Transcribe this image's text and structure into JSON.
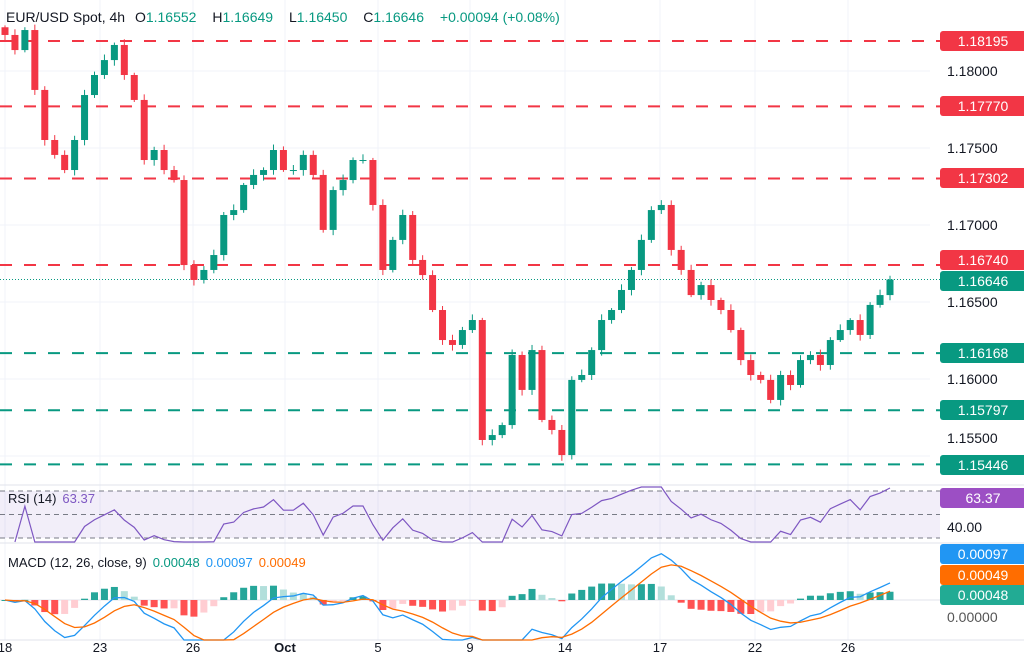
{
  "header": {
    "symbol": "EUR/USD Spot, 4h",
    "open_label": "O",
    "open": "1.16552",
    "high_label": "H",
    "high": "1.16649",
    "low_label": "L",
    "low": "1.16450",
    "close_label": "C",
    "close": "1.16646",
    "change": "+0.00094 (+0.08%)"
  },
  "colors": {
    "up": "#089981",
    "down": "#f23645",
    "rsi": "#7e57c2",
    "macd": "#2196f3",
    "signal": "#ff6d00"
  },
  "price_axis": [
    "1.18000",
    "1.17500",
    "1.17000",
    "1.16500",
    "1.16000",
    "1.15500"
  ],
  "levels": {
    "resistance": [
      "1.18195",
      "1.17770",
      "1.17302",
      "1.16740"
    ],
    "support": [
      "1.16168",
      "1.15797",
      "1.15446"
    ],
    "current": "1.16646"
  },
  "rsi": {
    "label": "RSI (14)",
    "value": "63.37",
    "axis_label": "40.00"
  },
  "macd": {
    "label": "MACD (12, 26, close, 9)",
    "histogram": "0.00048",
    "macd": "0.00097",
    "signal": "0.00049",
    "zero": "0.00000"
  },
  "time_axis": [
    "18",
    "23",
    "26",
    "Oct",
    "5",
    "9",
    "14",
    "17",
    "22",
    "26"
  ],
  "chart_data": {
    "type": "candlestick",
    "title": "EUR/USD Spot, 4h",
    "ylim": [
      1.1525,
      1.184
    ],
    "closes": [
      1.18234,
      1.18136,
      1.18266,
      1.17877,
      1.17552,
      1.17455,
      1.17357,
      1.17552,
      1.17844,
      1.17974,
      1.18071,
      1.18169,
      1.17974,
      1.17812,
      1.17422,
      1.17487,
      1.17357,
      1.17292,
      1.1674,
      1.16643,
      1.16708,
      1.16805,
      1.17065,
      1.17097,
      1.1726,
      1.17325,
      1.17357,
      1.17487,
      1.17357,
      1.17357,
      1.17455,
      1.17325,
      1.16968,
      1.17227,
      1.17292,
      1.17422,
      1.17422,
      1.1713,
      1.16708,
      1.16903,
      1.17065,
      1.16773,
      1.16675,
      1.16448,
      1.16253,
      1.16221,
      1.16318,
      1.16383,
      1.15604,
      1.15636,
      1.15701,
      1.16156,
      1.15929,
      1.16188,
      1.15734,
      1.15669,
      1.15506,
      1.15994,
      1.16026,
      1.16188,
      1.16383,
      1.16448,
      1.16578,
      1.16708,
      1.16903,
      1.17097,
      1.1713,
      1.16838,
      1.16708,
      1.16545,
      1.1661,
      1.16513,
      1.16448,
      1.16318,
      1.16123,
      1.16026,
      1.15994,
      1.15864,
      1.16026,
      1.15961,
      1.16123,
      1.16156,
      1.16091,
      1.16253,
      1.16318,
      1.16383,
      1.16286,
      1.16481,
      1.16545,
      1.16646
    ],
    "horizontal_levels": [
      1.18195,
      1.1777,
      1.17302,
      1.1674,
      1.16168,
      1.15797,
      1.15446
    ],
    "rsi_levels": [
      70,
      50,
      30
    ],
    "grid": true
  }
}
